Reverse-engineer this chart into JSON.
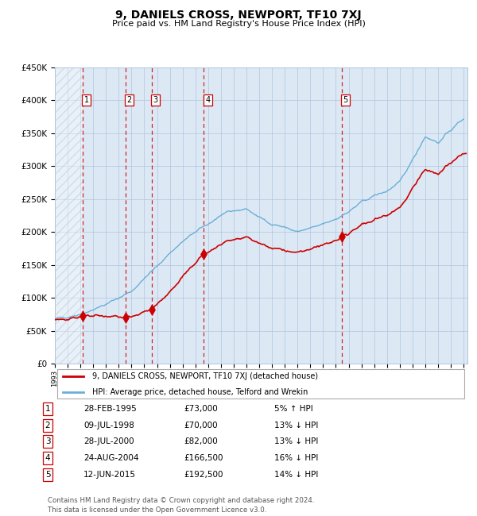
{
  "title": "9, DANIELS CROSS, NEWPORT, TF10 7XJ",
  "subtitle": "Price paid vs. HM Land Registry's House Price Index (HPI)",
  "ylim": [
    0,
    450000
  ],
  "yticks": [
    0,
    50000,
    100000,
    150000,
    200000,
    250000,
    300000,
    350000,
    400000,
    450000
  ],
  "ytick_labels": [
    "£0",
    "£50K",
    "£100K",
    "£150K",
    "£200K",
    "£250K",
    "£300K",
    "£350K",
    "£400K",
    "£450K"
  ],
  "sale_dates_num": [
    1995.163,
    1998.521,
    2000.573,
    2004.648,
    2015.443
  ],
  "sale_prices": [
    73000,
    70000,
    82000,
    166500,
    192500
  ],
  "sale_labels": [
    "1",
    "2",
    "3",
    "4",
    "5"
  ],
  "legend_line1": "9, DANIELS CROSS, NEWPORT, TF10 7XJ (detached house)",
  "legend_line2": "HPI: Average price, detached house, Telford and Wrekin",
  "table_rows": [
    [
      "1",
      "28-FEB-1995",
      "£73,000",
      "5% ↑ HPI"
    ],
    [
      "2",
      "09-JUL-1998",
      "£70,000",
      "13% ↓ HPI"
    ],
    [
      "3",
      "28-JUL-2000",
      "£82,000",
      "13% ↓ HPI"
    ],
    [
      "4",
      "24-AUG-2004",
      "£166,500",
      "16% ↓ HPI"
    ],
    [
      "5",
      "12-JUN-2015",
      "£192,500",
      "14% ↓ HPI"
    ]
  ],
  "footnote": "Contains HM Land Registry data © Crown copyright and database right 2024.\nThis data is licensed under the Open Government Licence v3.0.",
  "hpi_color": "#6baed6",
  "price_color": "#cc0000",
  "bg_color": "#dce9f5",
  "grid_color": "#b0c4de",
  "vline_color": "#cc0000",
  "box_color": "#cc0000",
  "xlim_start": 1993,
  "xlim_end": 2025.3
}
